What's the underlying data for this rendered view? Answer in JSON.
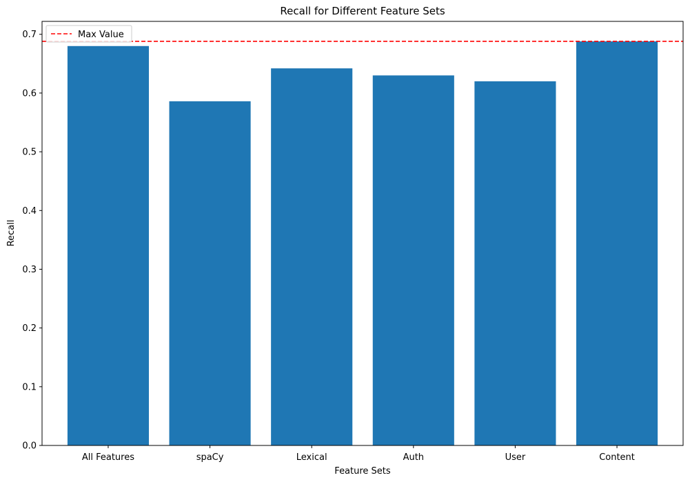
{
  "chart_data": {
    "type": "bar",
    "title": "Recall for Different Feature Sets",
    "xlabel": "Feature Sets",
    "ylabel": "Recall",
    "categories": [
      "All Features",
      "spaCy",
      "Lexical",
      "Auth",
      "User",
      "Content"
    ],
    "values": [
      0.68,
      0.586,
      0.642,
      0.63,
      0.62,
      0.688
    ],
    "ylim": [
      0,
      0.722
    ],
    "yticks": [
      "0.0",
      "0.1",
      "0.2",
      "0.3",
      "0.4",
      "0.5",
      "0.6",
      "0.7"
    ],
    "bar_color": "#1f77b4",
    "reference_line": {
      "label": "Max Value",
      "value": 0.688,
      "color": "#ff0000",
      "style": "dashed"
    },
    "legend": {
      "position": "top-left",
      "entries": [
        "Max Value"
      ]
    },
    "grid": false
  }
}
